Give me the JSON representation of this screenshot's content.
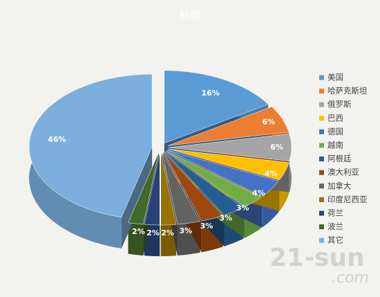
{
  "chart_data": {
    "type": "pie3d",
    "title": "标题",
    "categories": [
      "美国",
      "哈萨克斯坦",
      "俄罗斯",
      "巴西",
      "德国",
      "越南",
      "阿根廷",
      "澳大利亚",
      "加拿大",
      "印度尼西亚",
      "荷兰",
      "波兰",
      "其它"
    ],
    "values": [
      16,
      6,
      6,
      4,
      4,
      3,
      3,
      3,
      3,
      2,
      2,
      2,
      46
    ],
    "value_labels": [
      "16%",
      "6%",
      "6%",
      "4%",
      "4%",
      "3%",
      "3%",
      "3%",
      "3%",
      "2%",
      "2%",
      "2%",
      "46%"
    ],
    "colors": [
      "#5b9bd5",
      "#ed7d31",
      "#a5a5a5",
      "#ffc000",
      "#4472c4",
      "#70ad47",
      "#255e91",
      "#9e480e",
      "#636363",
      "#997300",
      "#264478",
      "#43682b",
      "#7cafdd"
    ],
    "legend": "right",
    "watermark": [
      "21-sun",
      ".com"
    ]
  }
}
